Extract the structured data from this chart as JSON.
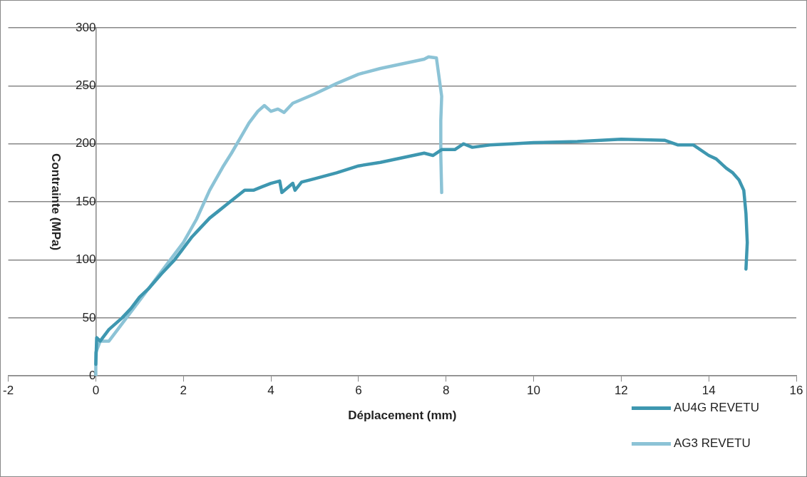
{
  "chart_data": {
    "type": "line",
    "xlabel": "Déplacement (mm)",
    "ylabel": "Contrainte (MPa)",
    "xlim": [
      -2,
      16
    ],
    "xticks": [
      -2,
      0,
      2,
      4,
      6,
      8,
      10,
      12,
      14,
      16
    ],
    "ylim": [
      0,
      300
    ],
    "yticks": [
      0,
      50,
      100,
      150,
      200,
      250,
      300
    ],
    "grid": "y",
    "legend": "bottom right",
    "marker": "none",
    "line_style": "solid",
    "series": [
      {
        "name": "AU4G REVETU",
        "color": "#3e97b0",
        "x": [
          0,
          0.02,
          0.1,
          0.3,
          0.6,
          0.8,
          1.0,
          1.2,
          1.5,
          1.8,
          2.0,
          2.2,
          2.4,
          2.6,
          2.8,
          3.0,
          3.2,
          3.4,
          3.6,
          3.8,
          4.0,
          4.2,
          4.25,
          4.5,
          4.55,
          4.7,
          5.0,
          5.5,
          6.0,
          6.5,
          7.0,
          7.5,
          7.7,
          7.9,
          8.2,
          8.4,
          8.6,
          9.0,
          9.5,
          10,
          11,
          12,
          13,
          13.3,
          13.65,
          14.0,
          14.17,
          14.4,
          14.55,
          14.69,
          14.8,
          14.85,
          14.88,
          14.85
        ],
        "values": [
          10,
          33,
          30,
          40,
          50,
          58,
          68,
          75,
          88,
          100,
          110,
          120,
          128,
          136,
          142,
          148,
          154,
          160,
          160,
          163,
          166,
          168,
          158,
          166,
          160,
          167,
          170,
          175,
          181,
          184,
          188,
          192,
          190,
          195,
          195,
          200,
          197,
          199,
          200,
          201,
          202,
          204,
          203,
          199,
          199,
          190,
          187,
          179,
          175,
          169,
          160,
          140,
          115,
          92
        ]
      },
      {
        "name": "AG3 REVETU",
        "color": "#8cc3d6",
        "x": [
          0,
          0.0,
          0.1,
          0.3,
          0.5,
          0.8,
          1.0,
          1.3,
          1.6,
          2.0,
          2.3,
          2.6,
          2.9,
          3.1,
          3.3,
          3.5,
          3.7,
          3.85,
          4.0,
          4.16,
          4.3,
          4.5,
          5.0,
          5.5,
          6.0,
          6.5,
          7.0,
          7.5,
          7.6,
          7.78,
          7.9,
          7.88,
          7.88,
          7.9
        ],
        "values": [
          0,
          20,
          30,
          30,
          40,
          55,
          65,
          80,
          95,
          115,
          135,
          160,
          180,
          192,
          205,
          218,
          228,
          233,
          228,
          230,
          227,
          235,
          243,
          252,
          260,
          265,
          269,
          273,
          275,
          274,
          241,
          220,
          190,
          158
        ]
      }
    ]
  }
}
